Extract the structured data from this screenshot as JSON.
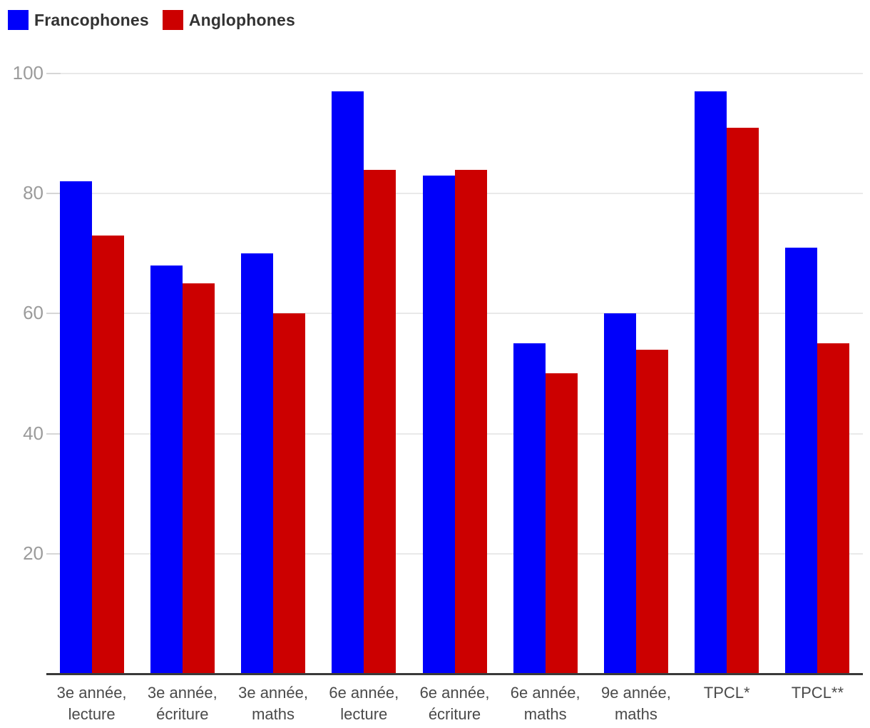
{
  "legend": {
    "items": [
      {
        "label": "Francophones",
        "color": "#0000fa"
      },
      {
        "label": "Anglophones",
        "color": "#cc0000"
      }
    ]
  },
  "chart_data": {
    "type": "bar",
    "categories": [
      "3e année, lecture",
      "3e année, écriture",
      "3e année, maths",
      "6e année, lecture",
      "6e année, écriture",
      "6e année, maths",
      "9e année, maths",
      "TPCL*",
      "TPCL**"
    ],
    "series": [
      {
        "name": "Francophones",
        "color": "#0000fa",
        "values": [
          82,
          68,
          70,
          97,
          83,
          55,
          60,
          97,
          71
        ]
      },
      {
        "name": "Anglophones",
        "color": "#cc0000",
        "values": [
          73,
          65,
          60,
          84,
          84,
          50,
          54,
          91,
          55
        ]
      }
    ],
    "title": "",
    "xlabel": "",
    "ylabel": "",
    "ylim": [
      0,
      100
    ],
    "yticks": [
      20,
      40,
      60,
      80,
      100
    ],
    "grid": true,
    "legend_position": "top-left"
  },
  "colors": {
    "grid": "#e9e9e9",
    "tick": "#d6d6d6",
    "axis": "#3a3a3a",
    "y_label_text": "#9b9b9b",
    "x_label_text": "#4a4a4a",
    "legend_text": "#333333",
    "background": "#ffffff"
  }
}
